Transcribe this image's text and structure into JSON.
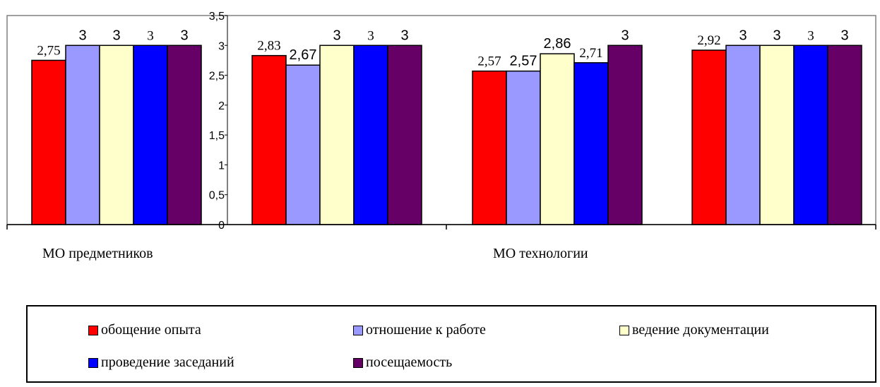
{
  "chart_data": {
    "type": "bar",
    "groups": [
      "МО предметников",
      "",
      "МО технологии",
      ""
    ],
    "category_labels": [
      "МО предметников",
      "МО технологии"
    ],
    "series": [
      {
        "name": "обощение опыта",
        "color": "#ff0000",
        "values": [
          2.75,
          2.83,
          2.57,
          2.92
        ],
        "labels": [
          "2,75",
          "2,83",
          "2,57",
          "2,92"
        ]
      },
      {
        "name": "отношение к работе",
        "color": "#9999ff",
        "values": [
          3,
          2.67,
          2.57,
          3
        ],
        "labels": [
          "3",
          "2,67",
          "2,57",
          "3"
        ]
      },
      {
        "name": "ведение документации",
        "color": "#ffffcc",
        "values": [
          3,
          3,
          2.86,
          3
        ],
        "labels": [
          "3",
          "3",
          "2,86",
          "3"
        ]
      },
      {
        "name": "проведение заседаний",
        "color": "#0000ff",
        "values": [
          3,
          3,
          2.71,
          3
        ],
        "labels": [
          "3",
          "3",
          "2,71",
          "3"
        ]
      },
      {
        "name": "посещаемость",
        "color": "#660066",
        "values": [
          3,
          3,
          3,
          3
        ],
        "labels": [
          "3",
          "3",
          "3",
          "3"
        ]
      }
    ],
    "y_ticks": [
      "0",
      "0,5",
      "1",
      "1,5",
      "2",
      "2,5",
      "3",
      "3,5"
    ],
    "ylim": [
      0,
      3.5
    ],
    "legend_position": "bottom"
  }
}
